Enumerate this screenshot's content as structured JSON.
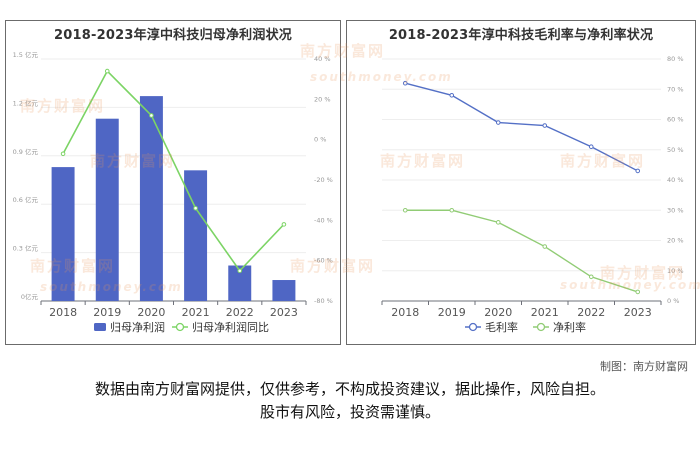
{
  "chart_data": [
    {
      "type": "bar+line",
      "title": "2018-2023年淳中科技归母净利润状况",
      "categories": [
        "2018",
        "2019",
        "2020",
        "2021",
        "2022",
        "2023"
      ],
      "left_axis": {
        "ticks": [
          "0亿元",
          "0.3 亿元",
          "0.6 亿元",
          "0.9 亿元",
          "1.2 亿元",
          "1.5 亿元"
        ],
        "ylim": [
          0,
          1.5
        ]
      },
      "right_axis": {
        "ticks": [
          "-80 %",
          "-60 %",
          "-40 %",
          "-20 %",
          "0 %",
          "20 %",
          "40 %"
        ],
        "ylim": [
          -80,
          40
        ]
      },
      "series": [
        {
          "name": "归母净利润",
          "kind": "bar",
          "axis": "left",
          "values": [
            0.83,
            1.13,
            1.27,
            0.81,
            0.22,
            0.13
          ],
          "color": "#4f66c4"
        },
        {
          "name": "归母净利润同比",
          "kind": "line",
          "axis": "right",
          "values": [
            -7,
            34,
            12,
            -34,
            -65,
            -42
          ],
          "color": "#7cd465"
        }
      ],
      "legend_position": "bottom"
    },
    {
      "type": "line",
      "title": "2018-2023年淳中科技毛利率与净利率状况",
      "categories": [
        "2018",
        "2019",
        "2020",
        "2021",
        "2022",
        "2023"
      ],
      "right_axis": {
        "ticks": [
          "0 %",
          "10 %",
          "20 %",
          "30 %",
          "40 %",
          "50 %",
          "60 %",
          "70 %",
          "80 %"
        ],
        "ylim": [
          0,
          80
        ]
      },
      "series": [
        {
          "name": "毛利率",
          "kind": "line",
          "values": [
            72,
            68,
            59,
            58,
            51,
            43
          ],
          "color": "#5470c6"
        },
        {
          "name": "净利率",
          "kind": "line",
          "values": [
            30,
            30,
            26,
            18,
            8,
            3
          ],
          "color": "#91cc75"
        }
      ],
      "legend_position": "bottom"
    }
  ],
  "watermark": {
    "brand": "南方财富网",
    "domain": "southmoney.com"
  },
  "credit": "制图：南方财富网",
  "disclaimer": {
    "line1": "数据由南方财富网提供，仅供参考，不构成投资建议，据此操作，风险自担。",
    "line2": "股市有风险，投资需谨慎。"
  }
}
